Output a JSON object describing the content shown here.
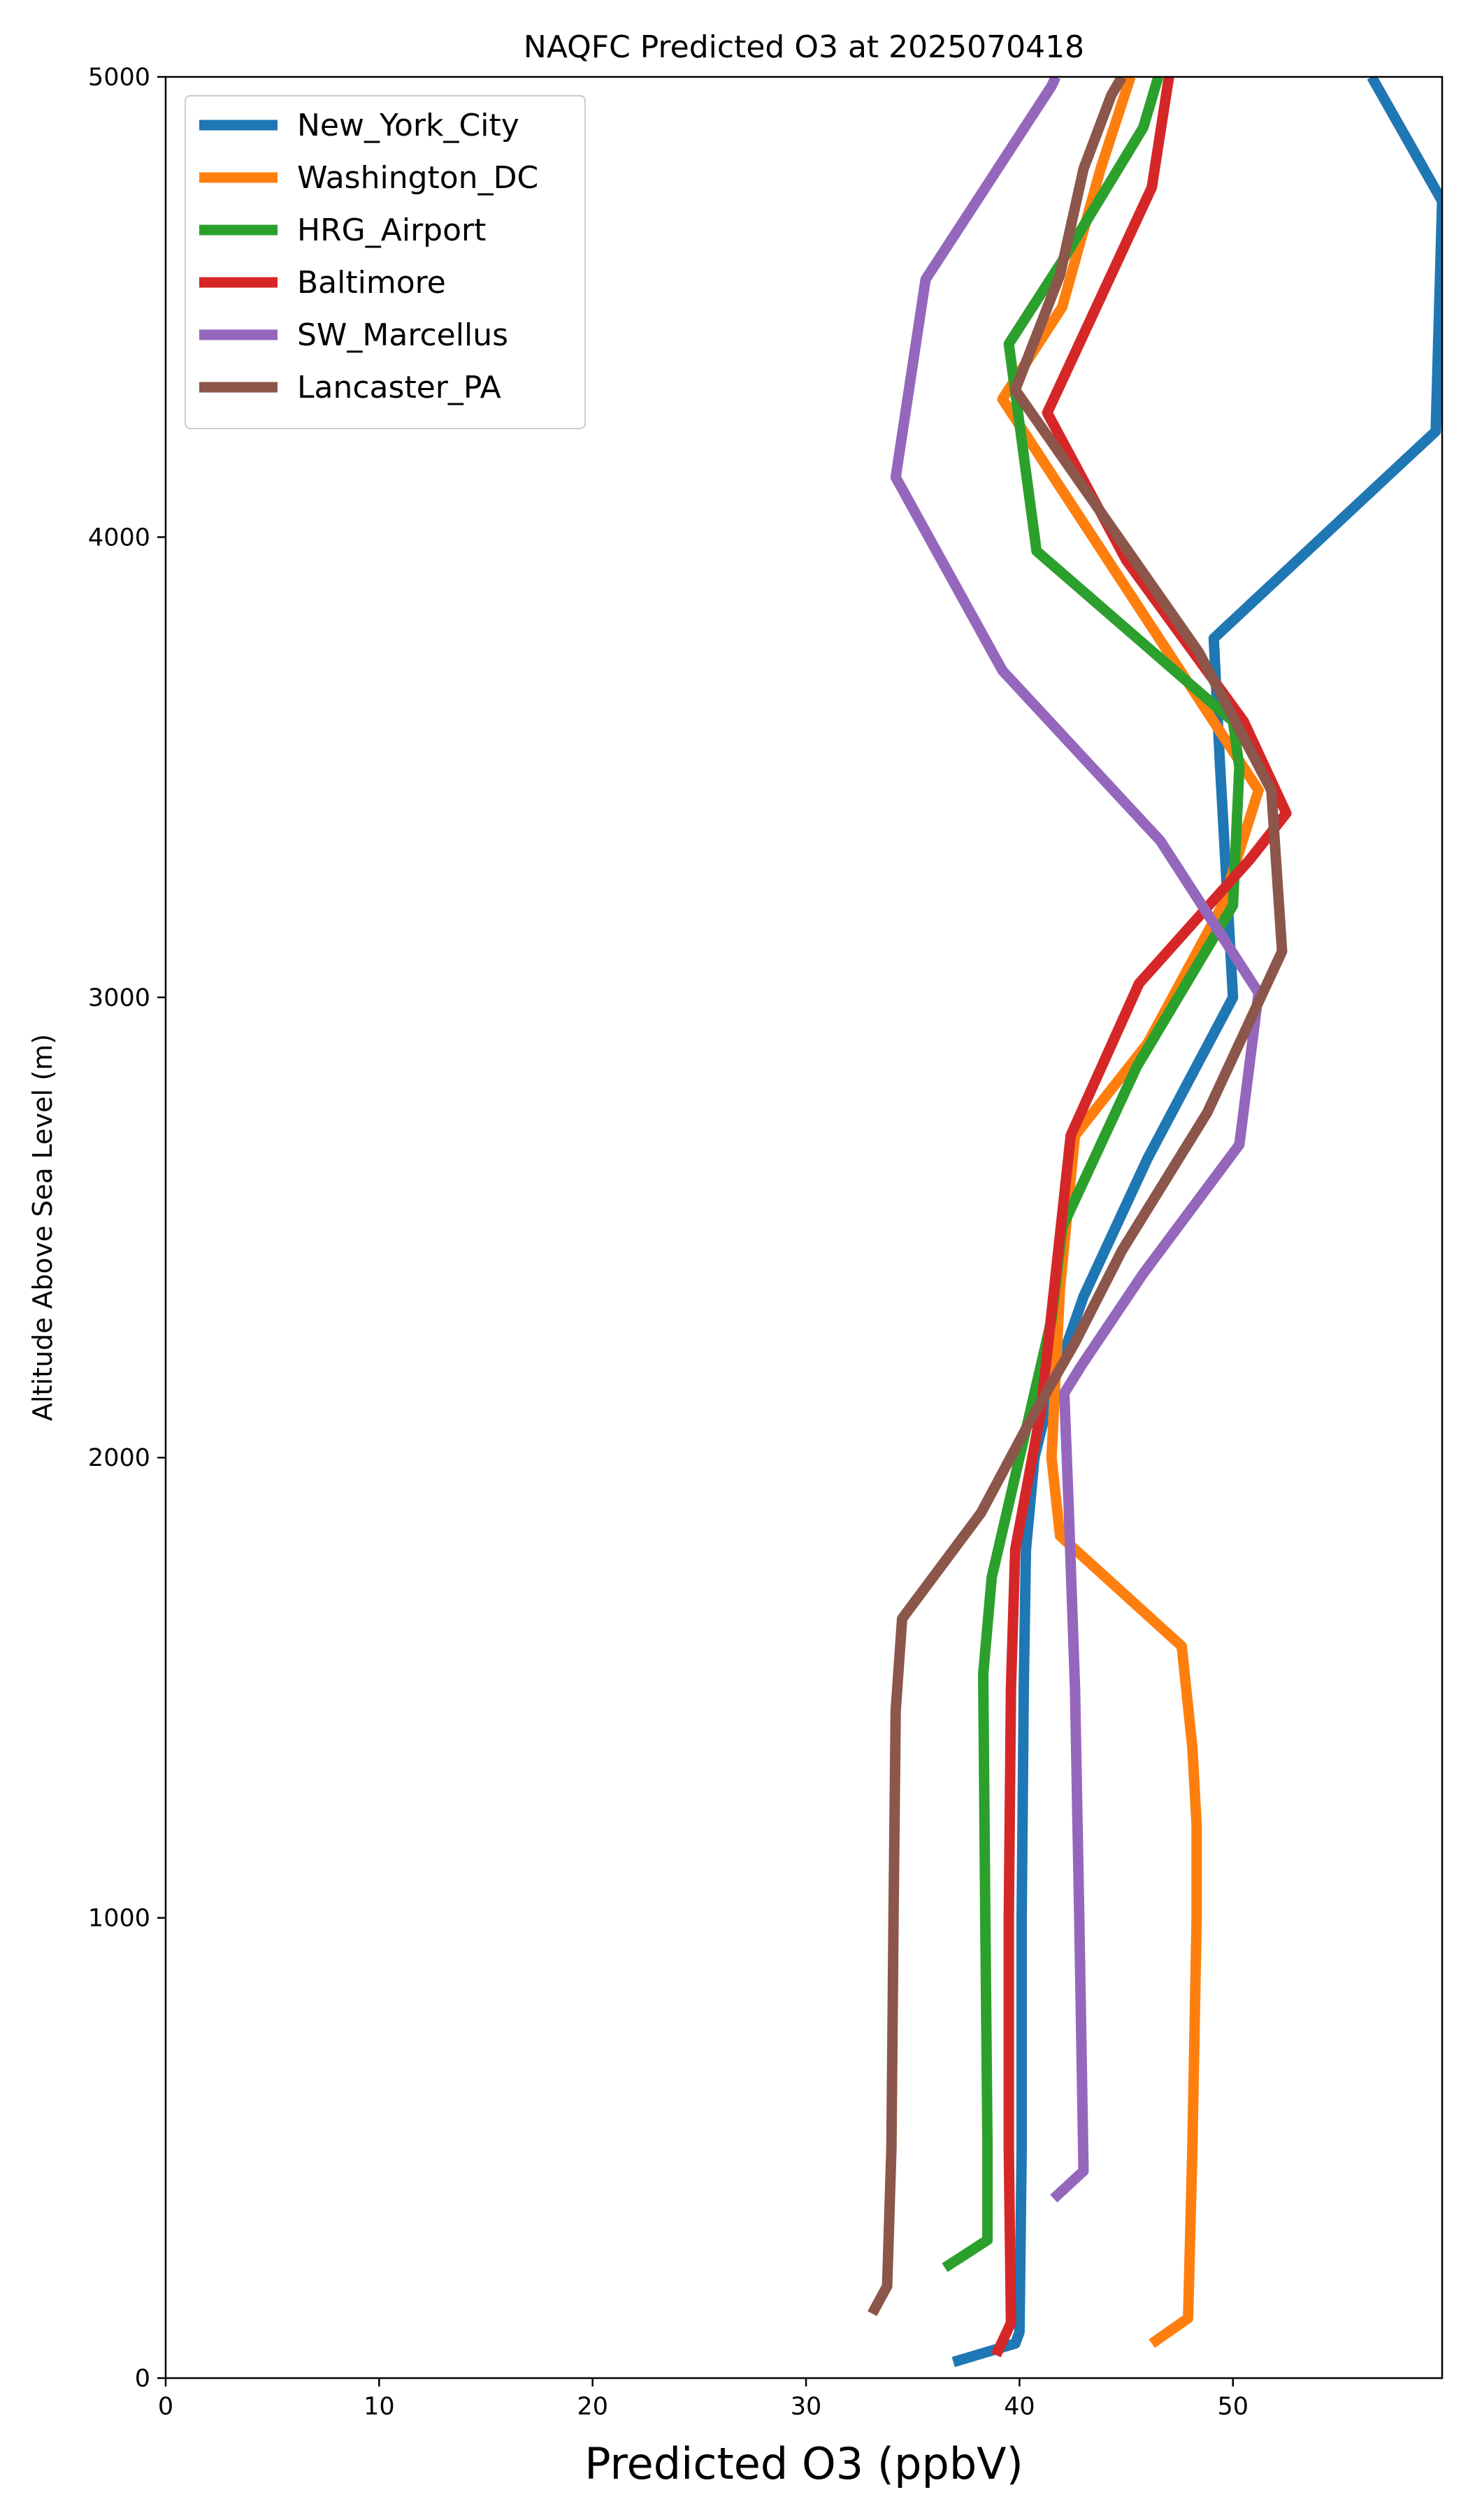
{
  "chart_data": {
    "type": "line",
    "title": "NAQFC Predicted O3 at 2025070418",
    "xlabel": "Predicted O3 (ppbV)",
    "ylabel": "Altitude Above Sea Level (m)",
    "xlim": [
      0,
      59.8
    ],
    "ylim": [
      0,
      5000
    ],
    "xticks": [
      0,
      10,
      20,
      30,
      40,
      50
    ],
    "yticks": [
      0,
      1000,
      2000,
      3000,
      4000,
      5000
    ],
    "grid": false,
    "legend": "top-left",
    "series": [
      {
        "name": "New_York_City",
        "color": "#1f77b4",
        "x": [
          36.9,
          39.8,
          40.0,
          40.1,
          40.1,
          40.2,
          40.3,
          40.7,
          41.5,
          43.0,
          46.0,
          50.0,
          49.4,
          49.1,
          59.5,
          59.8,
          56.5
        ],
        "y": [
          35,
          75,
          100,
          500,
          1000,
          1500,
          1800,
          2000,
          2150,
          2350,
          2650,
          3000,
          3500,
          3780,
          4230,
          4730,
          5000
        ]
      },
      {
        "name": "Washington_DC",
        "color": "#ff7f0e",
        "x": [
          46.2,
          47.9,
          48.1,
          48.3,
          48.3,
          48.1,
          47.6,
          41.9,
          41.5,
          41.9,
          42.6,
          46.0,
          49.5,
          51.2,
          39.2,
          42.0,
          43.8,
          45.2
        ],
        "y": [
          75,
          130,
          500,
          1000,
          1200,
          1370,
          1590,
          1830,
          2000,
          2370,
          2700,
          2900,
          3200,
          3450,
          4300,
          4500,
          4800,
          5000
        ]
      },
      {
        "name": "HRG_Airport",
        "color": "#2ca02c",
        "x": [
          36.5,
          38.5,
          38.5,
          38.4,
          38.3,
          38.7,
          40.0,
          41.5,
          42.0,
          45.5,
          50.0,
          50.3,
          50.0,
          40.8,
          39.5,
          42.0,
          45.8,
          46.5
        ],
        "y": [
          240,
          300,
          500,
          1000,
          1530,
          1740,
          2000,
          2300,
          2500,
          2850,
          3200,
          3500,
          3600,
          3970,
          4420,
          4600,
          4890,
          5000
        ]
      },
      {
        "name": "Baltimore",
        "color": "#d62728",
        "x": [
          38.9,
          39.6,
          39.5,
          39.5,
          39.6,
          39.8,
          41.0,
          42.4,
          45.6,
          50.8,
          52.5,
          50.5,
          45.0,
          41.3,
          43.6,
          46.2,
          47.0
        ],
        "y": [
          50,
          120,
          500,
          1000,
          1500,
          1800,
          2100,
          2700,
          3030,
          3300,
          3400,
          3600,
          3950,
          4270,
          4500,
          4760,
          5000
        ]
      },
      {
        "name": "SW_Marcellus",
        "color": "#9467bd",
        "x": [
          41.6,
          43.0,
          42.8,
          42.6,
          42.3,
          42.1,
          42.9,
          45.8,
          50.3,
          51.2,
          46.6,
          39.2,
          34.2,
          35.6,
          41.5,
          41.7
        ],
        "y": [
          390,
          450,
          1000,
          1500,
          1900,
          2140,
          2200,
          2400,
          2680,
          3010,
          3340,
          3710,
          4130,
          4560,
          4980,
          5000
        ]
      },
      {
        "name": "Lancaster_PA",
        "color": "#8c564b",
        "x": [
          33.1,
          33.8,
          34.0,
          34.1,
          34.2,
          34.5,
          38.2,
          40.5,
          42.6,
          44.8,
          48.8,
          52.3,
          51.8,
          48.4,
          39.8,
          41.9,
          43.0,
          44.3,
          44.8
        ],
        "y": [
          140,
          200,
          500,
          1000,
          1450,
          1650,
          1880,
          2080,
          2250,
          2450,
          2750,
          3100,
          3450,
          3750,
          4320,
          4570,
          4800,
          4960,
          5000
        ]
      }
    ]
  }
}
